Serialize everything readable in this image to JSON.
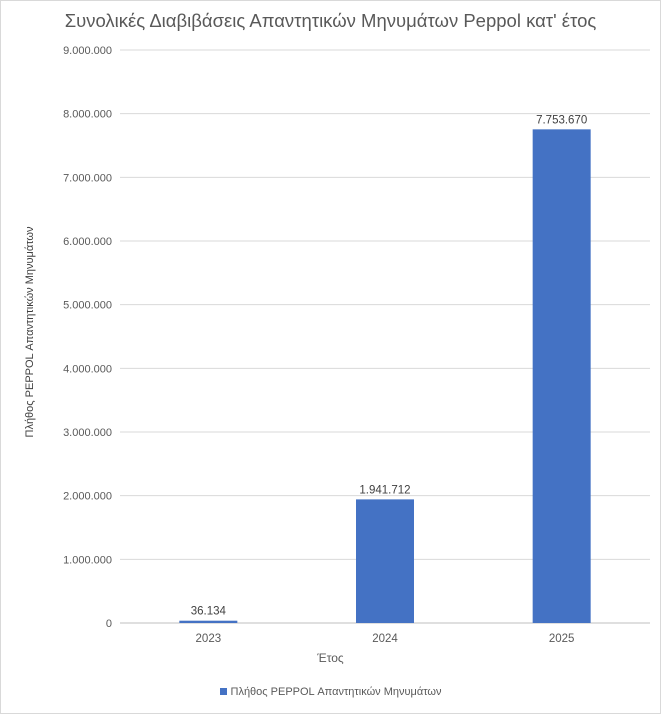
{
  "chart_data": {
    "type": "bar",
    "title": "Συνολικές Διαβιβάσεις Απαντητικών Μηνυμάτων Peppol κατ' έτος",
    "xlabel": "Έτος",
    "ylabel": "Πλήθος PEPPOL Απαντητικών Μηνυμάτων",
    "categories": [
      "2023",
      "2024",
      "2025"
    ],
    "series": [
      {
        "name": "Πλήθος PEPPOL Απαντητικών Μηνυμάτων",
        "values": [
          36134,
          1941712,
          7753670
        ],
        "data_labels": [
          "36.134",
          "1.941.712",
          "7.753.670"
        ],
        "color": "#4472c4"
      }
    ],
    "ylim": [
      0,
      9000000
    ],
    "yticks": [
      0,
      1000000,
      2000000,
      3000000,
      4000000,
      5000000,
      6000000,
      7000000,
      8000000,
      9000000
    ],
    "ytick_labels": [
      "0",
      "1.000.000",
      "2.000.000",
      "3.000.000",
      "4.000.000",
      "5.000.000",
      "6.000.000",
      "7.000.000",
      "8.000.000",
      "9.000.000"
    ],
    "grid": true,
    "legend_position": "bottom"
  }
}
